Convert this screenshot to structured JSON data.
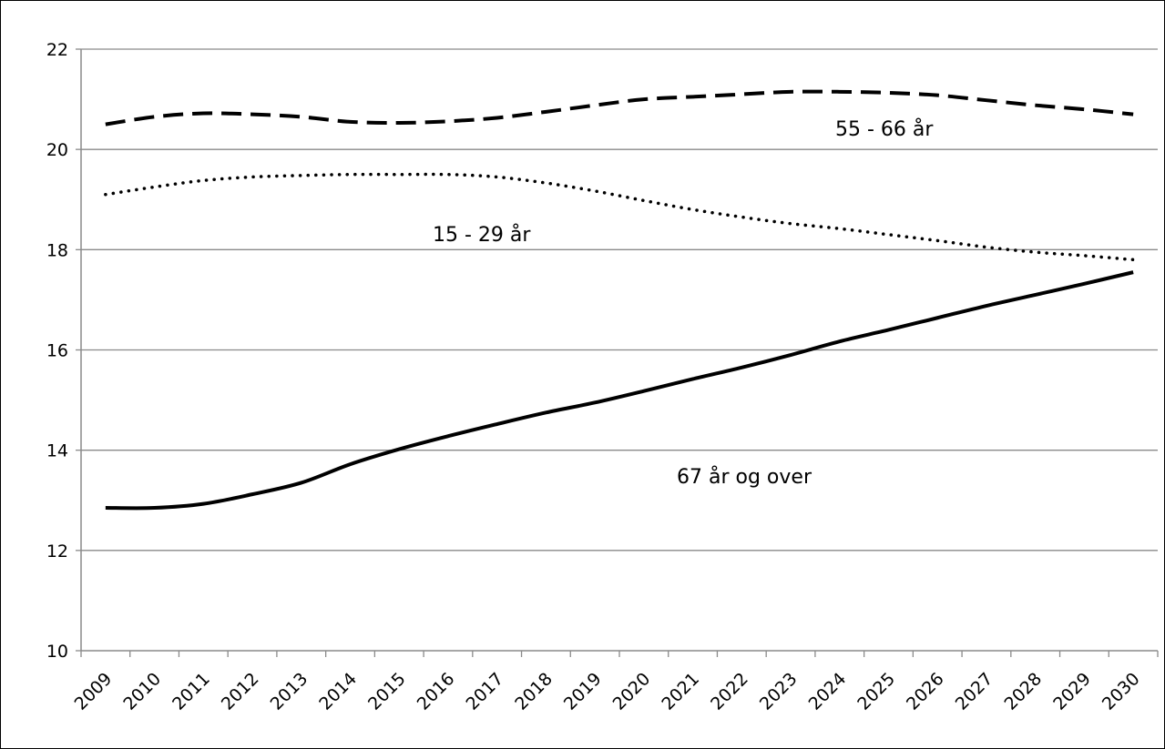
{
  "chart_data": {
    "type": "line",
    "title": "",
    "xlabel": "",
    "ylabel": "",
    "x": [
      "2009",
      "2010",
      "2011",
      "2012",
      "2013",
      "2014",
      "2015",
      "2016",
      "2017",
      "2018",
      "2019",
      "2020",
      "2021",
      "2022",
      "2023",
      "2024",
      "2025",
      "2026",
      "2027",
      "2028",
      "2029",
      "2030"
    ],
    "ylim": [
      10,
      22
    ],
    "yticks": [
      "10",
      "12",
      "14",
      "16",
      "18",
      "20",
      "22"
    ],
    "grid": "horizontal",
    "legend": "none",
    "series": [
      {
        "name": "55 - 66 år",
        "style": "dashed",
        "color": "#000000",
        "values": [
          20.5,
          20.65,
          20.72,
          20.7,
          20.65,
          20.55,
          20.53,
          20.56,
          20.63,
          20.75,
          20.88,
          21.0,
          21.05,
          21.1,
          21.15,
          21.15,
          21.13,
          21.08,
          20.98,
          20.88,
          20.8,
          20.7
        ]
      },
      {
        "name": "15 - 29 år",
        "style": "dotted",
        "color": "#000000",
        "values": [
          19.1,
          19.25,
          19.38,
          19.45,
          19.48,
          19.5,
          19.5,
          19.5,
          19.45,
          19.33,
          19.17,
          18.98,
          18.8,
          18.65,
          18.52,
          18.42,
          18.3,
          18.18,
          18.05,
          17.95,
          17.88,
          17.8
        ]
      },
      {
        "name": "67 år og over",
        "style": "solid",
        "color": "#000000",
        "values": [
          12.85,
          12.85,
          12.93,
          13.12,
          13.35,
          13.72,
          14.02,
          14.28,
          14.52,
          14.75,
          14.95,
          15.18,
          15.42,
          15.65,
          15.9,
          16.17,
          16.4,
          16.64,
          16.88,
          17.1,
          17.32,
          17.55
        ]
      }
    ]
  }
}
